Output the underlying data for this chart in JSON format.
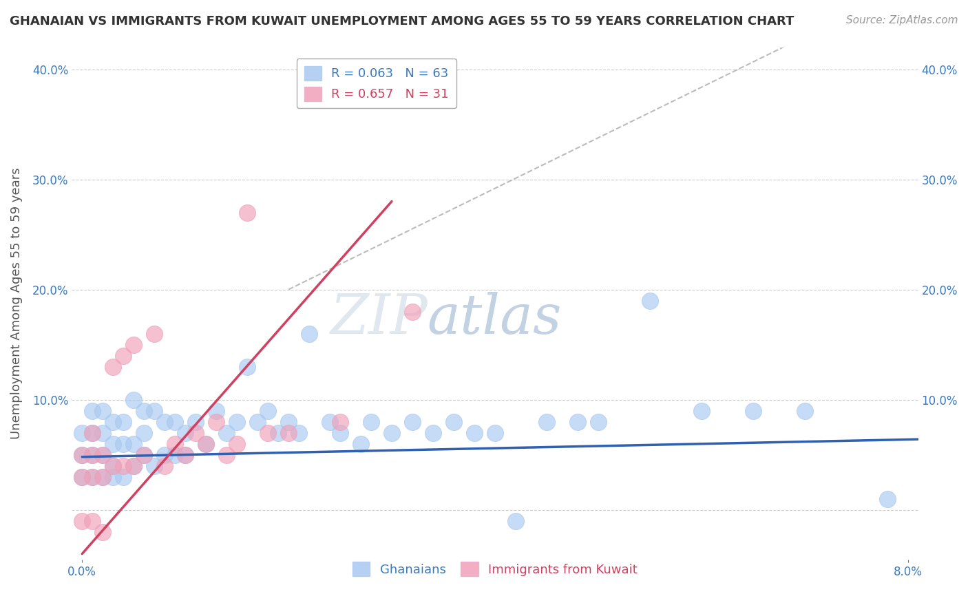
{
  "title": "GHANAIAN VS IMMIGRANTS FROM KUWAIT UNEMPLOYMENT AMONG AGES 55 TO 59 YEARS CORRELATION CHART",
  "source": "Source: ZipAtlas.com",
  "ylabel": "Unemployment Among Ages 55 to 59 years",
  "legend_entries": [
    {
      "label": "Ghanaians",
      "R": 0.063,
      "N": 63,
      "color": "#a8c8f0",
      "line_color": "#3060b0"
    },
    {
      "label": "Immigrants from Kuwait",
      "R": 0.657,
      "N": 31,
      "color": "#f0a0b8",
      "line_color": "#d04060"
    }
  ],
  "watermark_zip": "ZIP",
  "watermark_atlas": "atlas",
  "background_color": "#ffffff",
  "grid_color": "#cccccc",
  "xmin": -0.001,
  "xmax": 0.081,
  "ymin": -0.045,
  "ymax": 0.42,
  "yticks": [
    0.0,
    0.1,
    0.2,
    0.3,
    0.4
  ],
  "xticks": [
    0.0,
    0.08
  ],
  "blue_x": [
    0.0,
    0.0,
    0.0,
    0.001,
    0.001,
    0.001,
    0.001,
    0.002,
    0.002,
    0.002,
    0.002,
    0.003,
    0.003,
    0.003,
    0.003,
    0.004,
    0.004,
    0.004,
    0.005,
    0.005,
    0.005,
    0.006,
    0.006,
    0.006,
    0.007,
    0.007,
    0.008,
    0.008,
    0.009,
    0.009,
    0.01,
    0.01,
    0.011,
    0.012,
    0.013,
    0.014,
    0.015,
    0.016,
    0.017,
    0.018,
    0.019,
    0.02,
    0.021,
    0.022,
    0.024,
    0.025,
    0.027,
    0.028,
    0.03,
    0.032,
    0.034,
    0.036,
    0.038,
    0.04,
    0.042,
    0.045,
    0.048,
    0.05,
    0.055,
    0.06,
    0.065,
    0.07,
    0.078
  ],
  "blue_y": [
    0.03,
    0.05,
    0.07,
    0.03,
    0.05,
    0.07,
    0.09,
    0.03,
    0.05,
    0.07,
    0.09,
    0.03,
    0.04,
    0.06,
    0.08,
    0.03,
    0.06,
    0.08,
    0.04,
    0.06,
    0.1,
    0.05,
    0.07,
    0.09,
    0.04,
    0.09,
    0.05,
    0.08,
    0.05,
    0.08,
    0.05,
    0.07,
    0.08,
    0.06,
    0.09,
    0.07,
    0.08,
    0.13,
    0.08,
    0.09,
    0.07,
    0.08,
    0.07,
    0.16,
    0.08,
    0.07,
    0.06,
    0.08,
    0.07,
    0.08,
    0.07,
    0.08,
    0.07,
    0.07,
    -0.01,
    0.08,
    0.08,
    0.08,
    0.19,
    0.09,
    0.09,
    0.09,
    0.01
  ],
  "pink_x": [
    0.0,
    0.0,
    0.0,
    0.001,
    0.001,
    0.001,
    0.001,
    0.002,
    0.002,
    0.002,
    0.003,
    0.003,
    0.004,
    0.004,
    0.005,
    0.005,
    0.006,
    0.007,
    0.008,
    0.009,
    0.01,
    0.011,
    0.012,
    0.013,
    0.014,
    0.015,
    0.016,
    0.018,
    0.02,
    0.025,
    0.032
  ],
  "pink_y": [
    0.03,
    0.05,
    -0.01,
    0.03,
    0.05,
    0.07,
    -0.01,
    0.03,
    0.05,
    -0.02,
    0.04,
    0.13,
    0.04,
    0.14,
    0.04,
    0.15,
    0.05,
    0.16,
    0.04,
    0.06,
    0.05,
    0.07,
    0.06,
    0.08,
    0.05,
    0.06,
    0.27,
    0.07,
    0.07,
    0.08,
    0.18
  ],
  "blue_trend_x": [
    0.0,
    0.081
  ],
  "blue_trend_y": [
    0.048,
    0.064
  ],
  "pink_trend_x": [
    0.0,
    0.03
  ],
  "pink_trend_y": [
    -0.04,
    0.28
  ]
}
